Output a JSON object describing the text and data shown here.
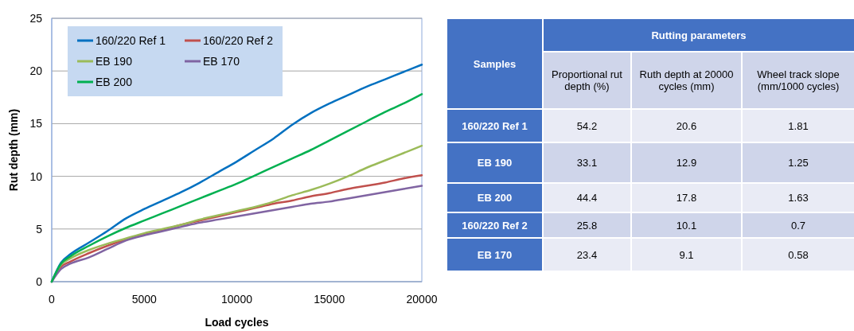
{
  "chart_data": [
    {
      "type": "line",
      "xlabel": "Load cycles",
      "ylabel": "Rut depth (mm)",
      "x": [
        0,
        500,
        1000,
        2000,
        3000,
        4000,
        5000,
        6000,
        7000,
        8000,
        9000,
        10000,
        11000,
        12000,
        13000,
        14000,
        15000,
        16000,
        17000,
        18000,
        19000,
        20000
      ],
      "series": [
        {
          "name": "160/220 Ref 1",
          "color": "#0070c0",
          "values": [
            0,
            1.8,
            2.6,
            3.7,
            4.8,
            6.0,
            6.9,
            7.7,
            8.5,
            9.4,
            10.4,
            11.4,
            12.5,
            13.6,
            14.9,
            16.0,
            16.9,
            17.7,
            18.5,
            19.2,
            19.9,
            20.6
          ]
        },
        {
          "name": "160/220 Ref 2",
          "color": "#c0504d",
          "values": [
            0,
            1.4,
            1.9,
            2.7,
            3.4,
            4.0,
            4.5,
            4.9,
            5.4,
            5.8,
            6.2,
            6.6,
            7.0,
            7.4,
            7.7,
            8.1,
            8.4,
            8.8,
            9.1,
            9.4,
            9.8,
            10.1
          ]
        },
        {
          "name": "EB 190",
          "color": "#9bbb59",
          "values": [
            0,
            1.6,
            2.2,
            3.0,
            3.6,
            4.1,
            4.6,
            5.0,
            5.4,
            5.9,
            6.3,
            6.7,
            7.1,
            7.6,
            8.2,
            8.7,
            9.3,
            10.0,
            10.8,
            11.5,
            12.2,
            12.9
          ]
        },
        {
          "name": "EB 170",
          "color": "#8064a2",
          "values": [
            0,
            1.2,
            1.7,
            2.3,
            3.1,
            3.9,
            4.4,
            4.8,
            5.2,
            5.6,
            5.9,
            6.2,
            6.5,
            6.8,
            7.1,
            7.4,
            7.6,
            7.9,
            8.2,
            8.5,
            8.8,
            9.1
          ]
        },
        {
          "name": "EB 200",
          "color": "#00b050",
          "values": [
            0,
            1.7,
            2.4,
            3.4,
            4.3,
            5.1,
            5.8,
            6.5,
            7.2,
            7.9,
            8.6,
            9.3,
            10.1,
            10.9,
            11.7,
            12.5,
            13.4,
            14.3,
            15.2,
            16.1,
            16.9,
            17.8
          ]
        }
      ],
      "xlim": [
        0,
        20000
      ],
      "xticks": [
        0,
        5000,
        10000,
        15000,
        20000
      ],
      "ylim": [
        0,
        25
      ],
      "yticks": [
        0,
        5,
        10,
        15,
        20,
        25
      ],
      "grid": "y",
      "legend": "top left",
      "marker": "none",
      "line_style": "solid"
    },
    {
      "type": "other",
      "title": "Rutting parameters",
      "annotations": [
        "Samples",
        "Proportional rut depth (%)",
        "Ruth depth at 20000 cycles (mm)",
        "Wheel track slope (mm/1000 cycles)",
        "160/220 Ref 1",
        "54.2",
        "20.6",
        "1.81",
        "EB 190",
        "33.1",
        "12.9",
        "1.25",
        "EB 200",
        "44.4",
        "17.8",
        "1.63",
        "160/220 Ref 2",
        "25.8",
        "10.1",
        "0.7",
        "EB 170",
        "23.4",
        "9.1",
        "0.58"
      ]
    }
  ]
}
